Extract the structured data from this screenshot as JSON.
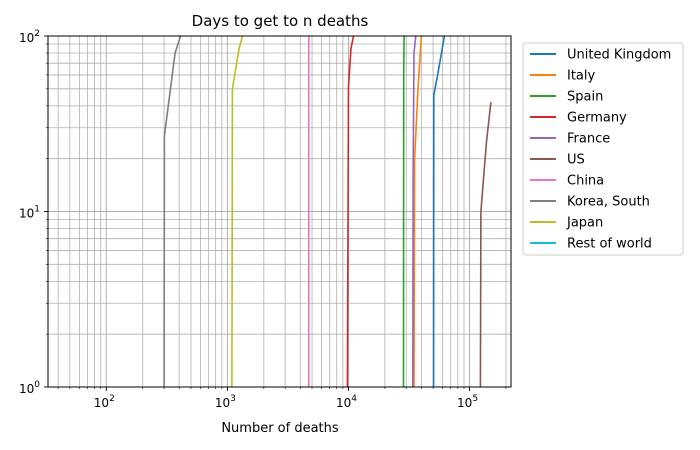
{
  "chart_data": {
    "type": "line",
    "title": "Days to get to n deaths",
    "xlabel": "Number of deaths",
    "ylabel": "",
    "xscale": "log",
    "yscale": "log",
    "xlim": [
      33,
      220000
    ],
    "ylim": [
      1,
      100
    ],
    "grid": "both-major-minor",
    "legend_position": "outside-right",
    "x_tick_labels": [
      {
        "value": 100,
        "base": "10",
        "exp": "2"
      },
      {
        "value": 1000,
        "base": "10",
        "exp": "3"
      },
      {
        "value": 10000,
        "base": "10",
        "exp": "4"
      },
      {
        "value": 100000,
        "base": "10",
        "exp": "5"
      }
    ],
    "y_tick_labels": [
      {
        "value": 1,
        "base": "10",
        "exp": "0"
      },
      {
        "value": 10,
        "base": "10",
        "exp": "1"
      },
      {
        "value": 100,
        "base": "10",
        "exp": "2"
      }
    ],
    "series": [
      {
        "name": "United Kingdom",
        "color": "#1f77b4",
        "points": [
          [
            50500,
            1
          ],
          [
            50700,
            46
          ],
          [
            55000,
            62
          ],
          [
            62000,
            100
          ]
        ]
      },
      {
        "name": "Italy",
        "color": "#ff7f0e",
        "points": [
          [
            34800,
            1
          ],
          [
            35200,
            20
          ],
          [
            37500,
            50
          ],
          [
            40000,
            100
          ]
        ]
      },
      {
        "name": "Spain",
        "color": "#2ca02c",
        "points": [
          [
            28500,
            1
          ],
          [
            28600,
            60
          ],
          [
            28800,
            100
          ]
        ]
      },
      {
        "name": "Germany",
        "color": "#d62728",
        "points": [
          [
            9800,
            1
          ],
          [
            10000,
            52
          ],
          [
            10500,
            85
          ],
          [
            11000,
            100
          ]
        ]
      },
      {
        "name": "France",
        "color": "#9467bd",
        "points": [
          [
            34000,
            1
          ],
          [
            34200,
            15
          ],
          [
            34800,
            80
          ],
          [
            36000,
            100
          ]
        ]
      },
      {
        "name": "US",
        "color": "#8c564b",
        "points": [
          [
            123000,
            1
          ],
          [
            124000,
            10
          ],
          [
            138000,
            25
          ],
          [
            150000,
            42
          ]
        ]
      },
      {
        "name": "China",
        "color": "#e377c2",
        "points": [
          [
            4700,
            1
          ],
          [
            4700,
            100
          ]
        ]
      },
      {
        "name": "Korea, South",
        "color": "#7f7f7f",
        "points": [
          [
            300,
            1
          ],
          [
            302,
            27
          ],
          [
            370,
            80
          ],
          [
            410,
            100
          ]
        ]
      },
      {
        "name": "Japan",
        "color": "#bcbd22",
        "points": [
          [
            1090,
            1
          ],
          [
            1100,
            50
          ],
          [
            1250,
            85
          ],
          [
            1330,
            100
          ]
        ]
      },
      {
        "name": "Rest of world",
        "color": "#17becf",
        "points": []
      }
    ]
  }
}
